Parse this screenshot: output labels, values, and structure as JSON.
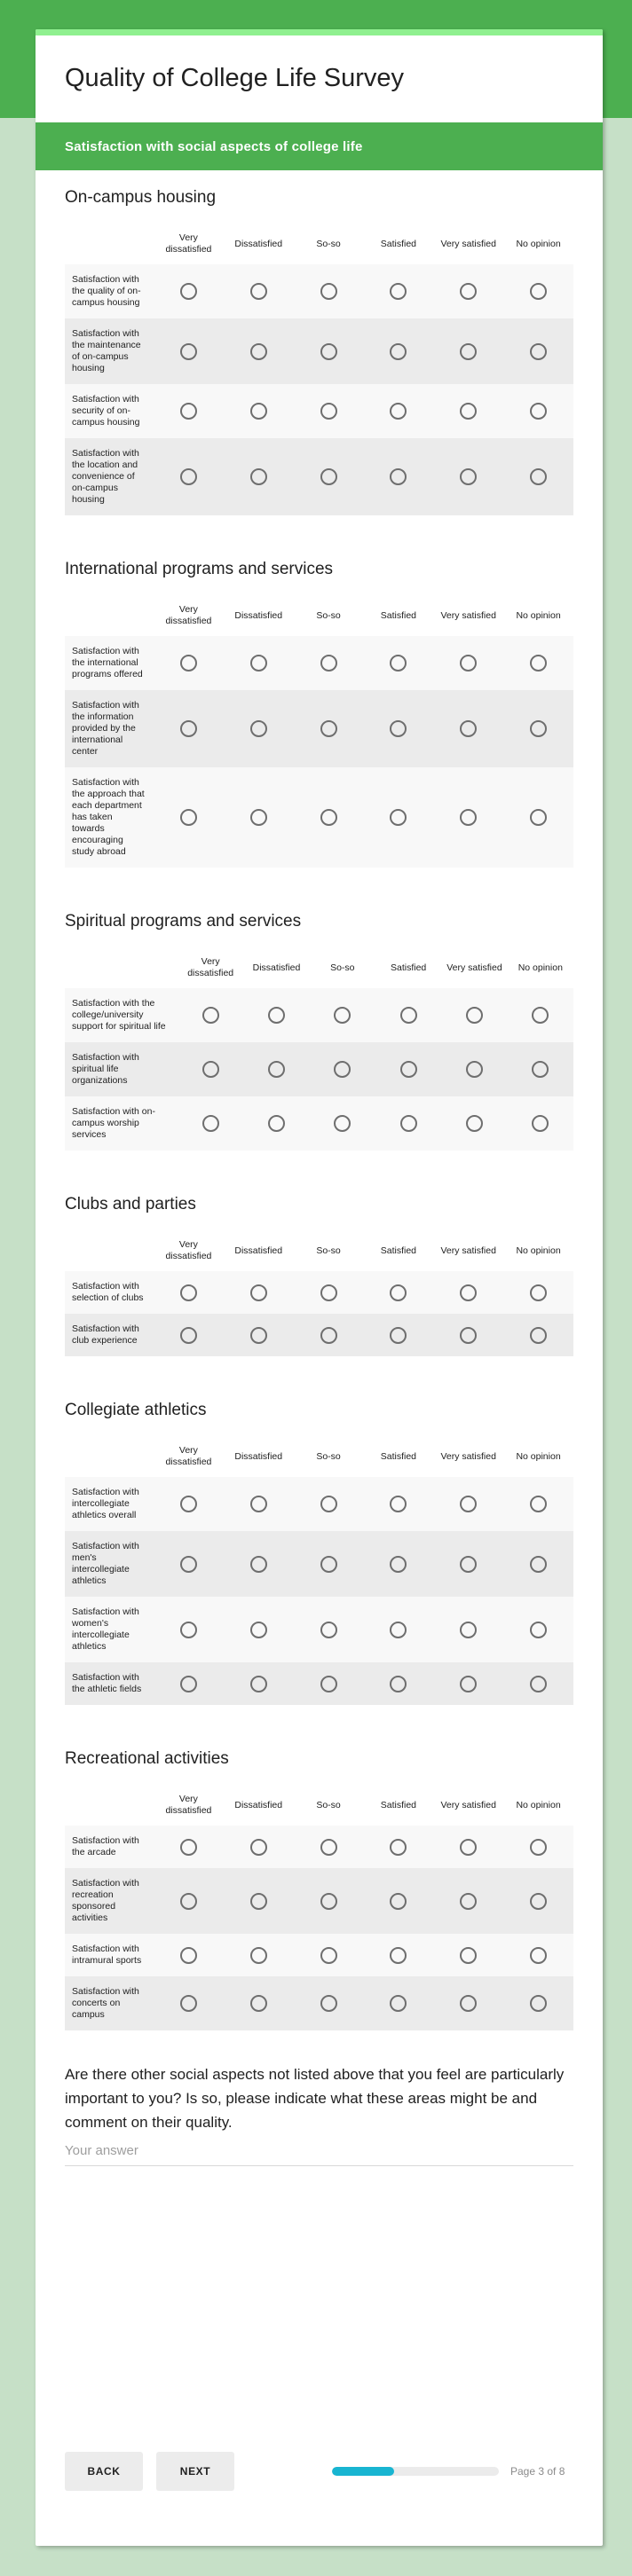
{
  "form": {
    "title": "Quality of College Life Survey"
  },
  "section_banner": {
    "title": "Satisfaction with social aspects of college life"
  },
  "columns": [
    "Very dissatisfied",
    "Dissatisfied",
    "So-so",
    "Satisfied",
    "Very satisfied",
    "No opinion"
  ],
  "grids": [
    {
      "heading": "On-campus housing",
      "wide_label": false,
      "rows": [
        "Satisfaction with the quality of on-campus housing",
        "Satisfaction with the maintenance of on-campus housing",
        "Satisfaction with security of on-campus housing",
        "Satisfaction with the location and convenience of on-campus housing"
      ]
    },
    {
      "heading": "International programs and services",
      "wide_label": false,
      "rows": [
        "Satisfaction with the international programs offered",
        "Satisfaction with the information provided by the international center",
        "Satisfaction with the approach that each department has taken towards encouraging study abroad"
      ]
    },
    {
      "heading": "Spiritual programs and services",
      "wide_label": true,
      "rows": [
        "Satisfaction with the college/university support for spiritual life",
        "Satisfaction with spiritual life organizations",
        "Satisfaction with on-campus worship services"
      ]
    },
    {
      "heading": "Clubs and parties",
      "wide_label": false,
      "rows": [
        "Satisfaction with selection of clubs",
        "Satisfaction with club experience"
      ]
    },
    {
      "heading": "Collegiate athletics",
      "wide_label": false,
      "rows": [
        "Satisfaction with intercollegiate athletics overall",
        "Satisfaction with men's intercollegiate athletics",
        "Satisfaction with women's intercollegiate athletics",
        "Satisfaction with the athletic fields"
      ]
    },
    {
      "heading": "Recreational activities",
      "wide_label": false,
      "rows": [
        "Satisfaction with the arcade",
        "Satisfaction with recreation sponsored activities",
        "Satisfaction with intramural sports",
        "Satisfaction with concerts on campus"
      ]
    }
  ],
  "open_question": {
    "text": "Are there other social aspects not listed above that you feel are particularly important to you? Is so, please indicate what these areas might be and comment on their quality.",
    "placeholder": "Your answer"
  },
  "footer": {
    "back_label": "BACK",
    "next_label": "NEXT",
    "page_label": "Page 3 of 8",
    "progress_percent": 37
  },
  "colors": {
    "theme_green": "#4caf50",
    "accent_strip_green": "#8ff08f",
    "page_background_green": "#c6e0c7",
    "progress_fill_cyan": "#19b5d1",
    "row_light": "#f8f8f8",
    "row_dark": "#ebebeb"
  }
}
